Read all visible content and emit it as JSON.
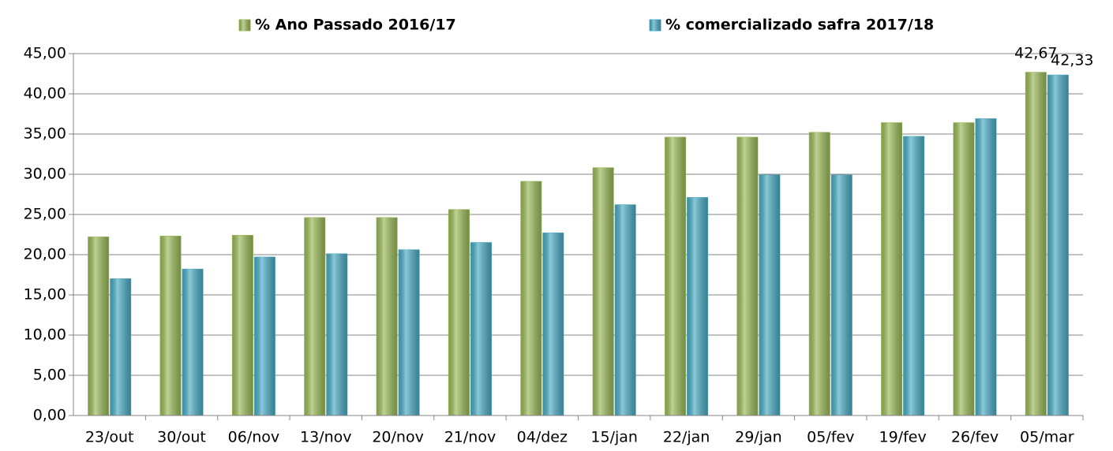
{
  "chart_data": {
    "type": "bar",
    "categories": [
      "23/out",
      "30/out",
      "06/nov",
      "13/nov",
      "20/nov",
      "21/nov",
      "04/dez",
      "15/jan",
      "22/jan",
      "29/jan",
      "05/fev",
      "19/fev",
      "26/fev",
      "05/mar"
    ],
    "series": [
      {
        "name": "% Ano Passado 2016/17",
        "color": "#9bbb59",
        "values": [
          22.2,
          22.3,
          22.4,
          24.6,
          24.6,
          25.6,
          29.1,
          30.8,
          34.6,
          34.6,
          35.2,
          36.4,
          36.4,
          42.67
        ],
        "value_labels": [
          null,
          null,
          null,
          null,
          null,
          null,
          null,
          null,
          null,
          null,
          null,
          null,
          null,
          "42,67"
        ]
      },
      {
        "name": "% comercializado safra 2017/18",
        "color": "#4bacc6",
        "values": [
          17.0,
          18.2,
          19.7,
          20.1,
          20.6,
          21.5,
          22.7,
          26.2,
          27.1,
          29.9,
          29.9,
          34.7,
          36.9,
          42.33
        ],
        "value_labels": [
          null,
          null,
          null,
          null,
          null,
          null,
          null,
          null,
          null,
          null,
          null,
          null,
          null,
          "42,33"
        ]
      }
    ],
    "ylim": [
      0,
      45
    ],
    "yticks": [
      {
        "value": 0,
        "label": "0,00"
      },
      {
        "value": 5,
        "label": "5,00"
      },
      {
        "value": 10,
        "label": "10,00"
      },
      {
        "value": 15,
        "label": "15,00"
      },
      {
        "value": 20,
        "label": "20,00"
      },
      {
        "value": 25,
        "label": "25,00"
      },
      {
        "value": 30,
        "label": "30,00"
      },
      {
        "value": 35,
        "label": "35,00"
      },
      {
        "value": 40,
        "label": "40,00"
      },
      {
        "value": 45,
        "label": "45,00"
      }
    ],
    "grid": true,
    "legend": "top"
  }
}
